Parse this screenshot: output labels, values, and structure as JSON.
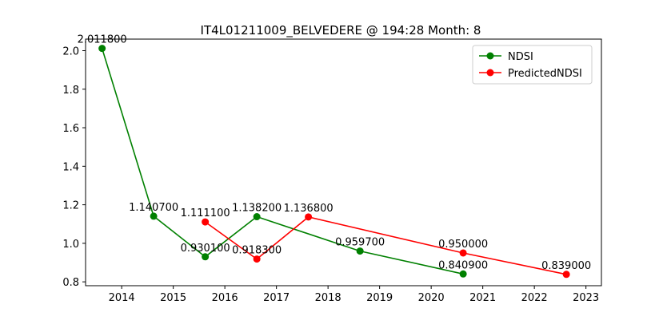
{
  "chart_data": {
    "type": "line",
    "title": "IT4L01211009_BELVEDERE @ 194:28 Month: 8",
    "xlabel": "",
    "ylabel": "",
    "xlim": [
      2013.3,
      2023.3
    ],
    "ylim": [
      0.78,
      2.06
    ],
    "x_ticks": [
      "2014",
      "2015",
      "2016",
      "2017",
      "2018",
      "2019",
      "2020",
      "2021",
      "2022",
      "2023"
    ],
    "y_ticks": [
      "0.8",
      "1.0",
      "1.2",
      "1.4",
      "1.6",
      "1.8",
      "2.0"
    ],
    "grid": false,
    "legend_position": "top-right",
    "series": [
      {
        "name": "NDSI",
        "color": "#008000",
        "x": [
          2013.62,
          2014.62,
          2015.62,
          2016.62,
          2018.62,
          2020.62
        ],
        "y": [
          2.0118,
          1.1407,
          0.9301,
          1.1382,
          0.9597,
          0.8409
        ],
        "labels": [
          "2.011800",
          "1.140700",
          "0.930100",
          "1.138200",
          "0.959700",
          "0.840900"
        ]
      },
      {
        "name": "PredictedNDSI",
        "color": "#ff0000",
        "x": [
          2015.62,
          2016.62,
          2017.62,
          2020.62,
          2022.62
        ],
        "y": [
          1.1111,
          0.9183,
          1.1368,
          0.95,
          0.839
        ],
        "labels": [
          "1.111100",
          "0.918300",
          "1.136800",
          "0.950000",
          "0.839000"
        ]
      }
    ]
  }
}
